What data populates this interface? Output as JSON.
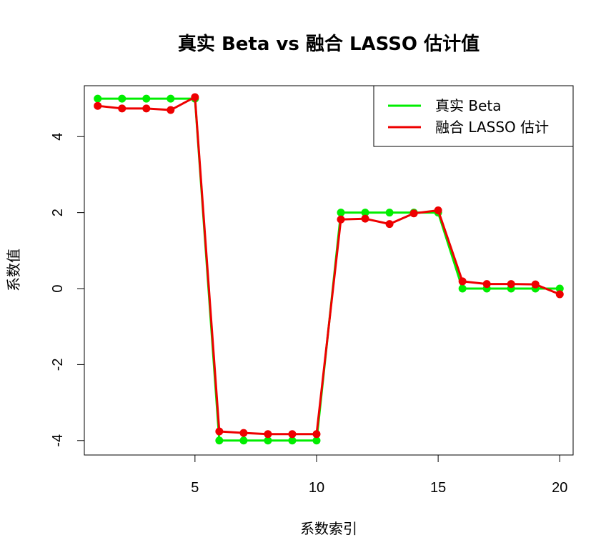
{
  "chart_data": {
    "type": "line",
    "title": "真实 Beta vs 融合 LASSO 估计值",
    "xlabel": "系数索引",
    "ylabel": "系数值",
    "xlim": [
      0.45,
      20.55
    ],
    "ylim": [
      -4.38,
      5.34
    ],
    "x_ticks": [
      5,
      10,
      15,
      20
    ],
    "y_ticks": [
      -4,
      -2,
      0,
      2,
      4
    ],
    "x": [
      1,
      2,
      3,
      4,
      5,
      6,
      7,
      8,
      9,
      10,
      11,
      12,
      13,
      14,
      15,
      16,
      17,
      18,
      19,
      20
    ],
    "series": [
      {
        "name": "真实 Beta",
        "color": "#00ee00",
        "values": [
          5,
          5,
          5,
          5,
          5,
          -4,
          -4,
          -4,
          -4,
          -4,
          2,
          2,
          2,
          2,
          2,
          0,
          0,
          0,
          0,
          0
        ]
      },
      {
        "name": "融合 LASSO 估计",
        "color": "#ee0000",
        "values": [
          4.81,
          4.74,
          4.74,
          4.7,
          5.04,
          -3.76,
          -3.8,
          -3.83,
          -3.83,
          -3.83,
          1.82,
          1.84,
          1.7,
          1.98,
          2.06,
          0.19,
          0.12,
          0.12,
          0.11,
          -0.15
        ]
      }
    ],
    "legend_position": "top-right",
    "grid": false
  }
}
